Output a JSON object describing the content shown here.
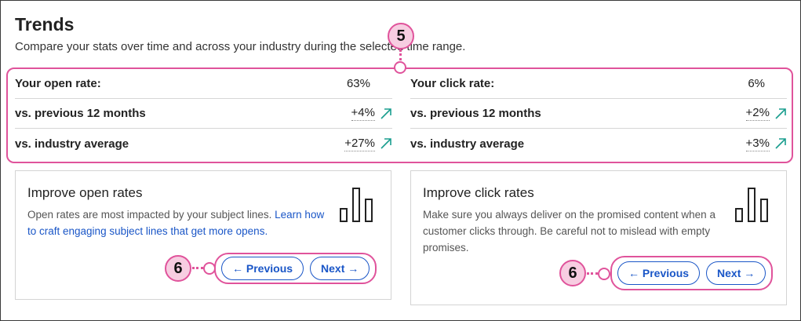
{
  "trends": {
    "title": "Trends",
    "subtitle": "Compare your stats over time and across your industry during the selected time range."
  },
  "callouts": {
    "stats": "5",
    "nav_left": "6",
    "nav_right": "6"
  },
  "open_rate": {
    "rows": [
      {
        "label": "Your open rate:",
        "value": "63%"
      },
      {
        "label": "vs. previous 12 months",
        "value": "+4%"
      },
      {
        "label": "vs. industry average",
        "value": "+27%"
      }
    ]
  },
  "click_rate": {
    "rows": [
      {
        "label": "Your click rate:",
        "value": "6%"
      },
      {
        "label": "vs. previous 12 months",
        "value": "+2%"
      },
      {
        "label": "vs. industry average",
        "value": "+3%"
      }
    ]
  },
  "open_card": {
    "title": "Improve open rates",
    "text": "Open rates are most impacted by your subject lines. ",
    "link": "Learn how to craft engaging subject lines that get more opens.",
    "prev": "← Previous",
    "next": "Next →",
    "icon": "bar-chart-icon"
  },
  "click_card": {
    "title": "Improve click rates",
    "text": "Make sure you always deliver on the promised content when a customer clicks through. Be careful not to mislead with empty promises.",
    "prev": "← Previous",
    "next": "Next →",
    "icon": "bar-chart-icon"
  },
  "colors": {
    "accent": "#e0539b",
    "link": "#1a56c7",
    "trend_up": "#1a9e8f"
  }
}
